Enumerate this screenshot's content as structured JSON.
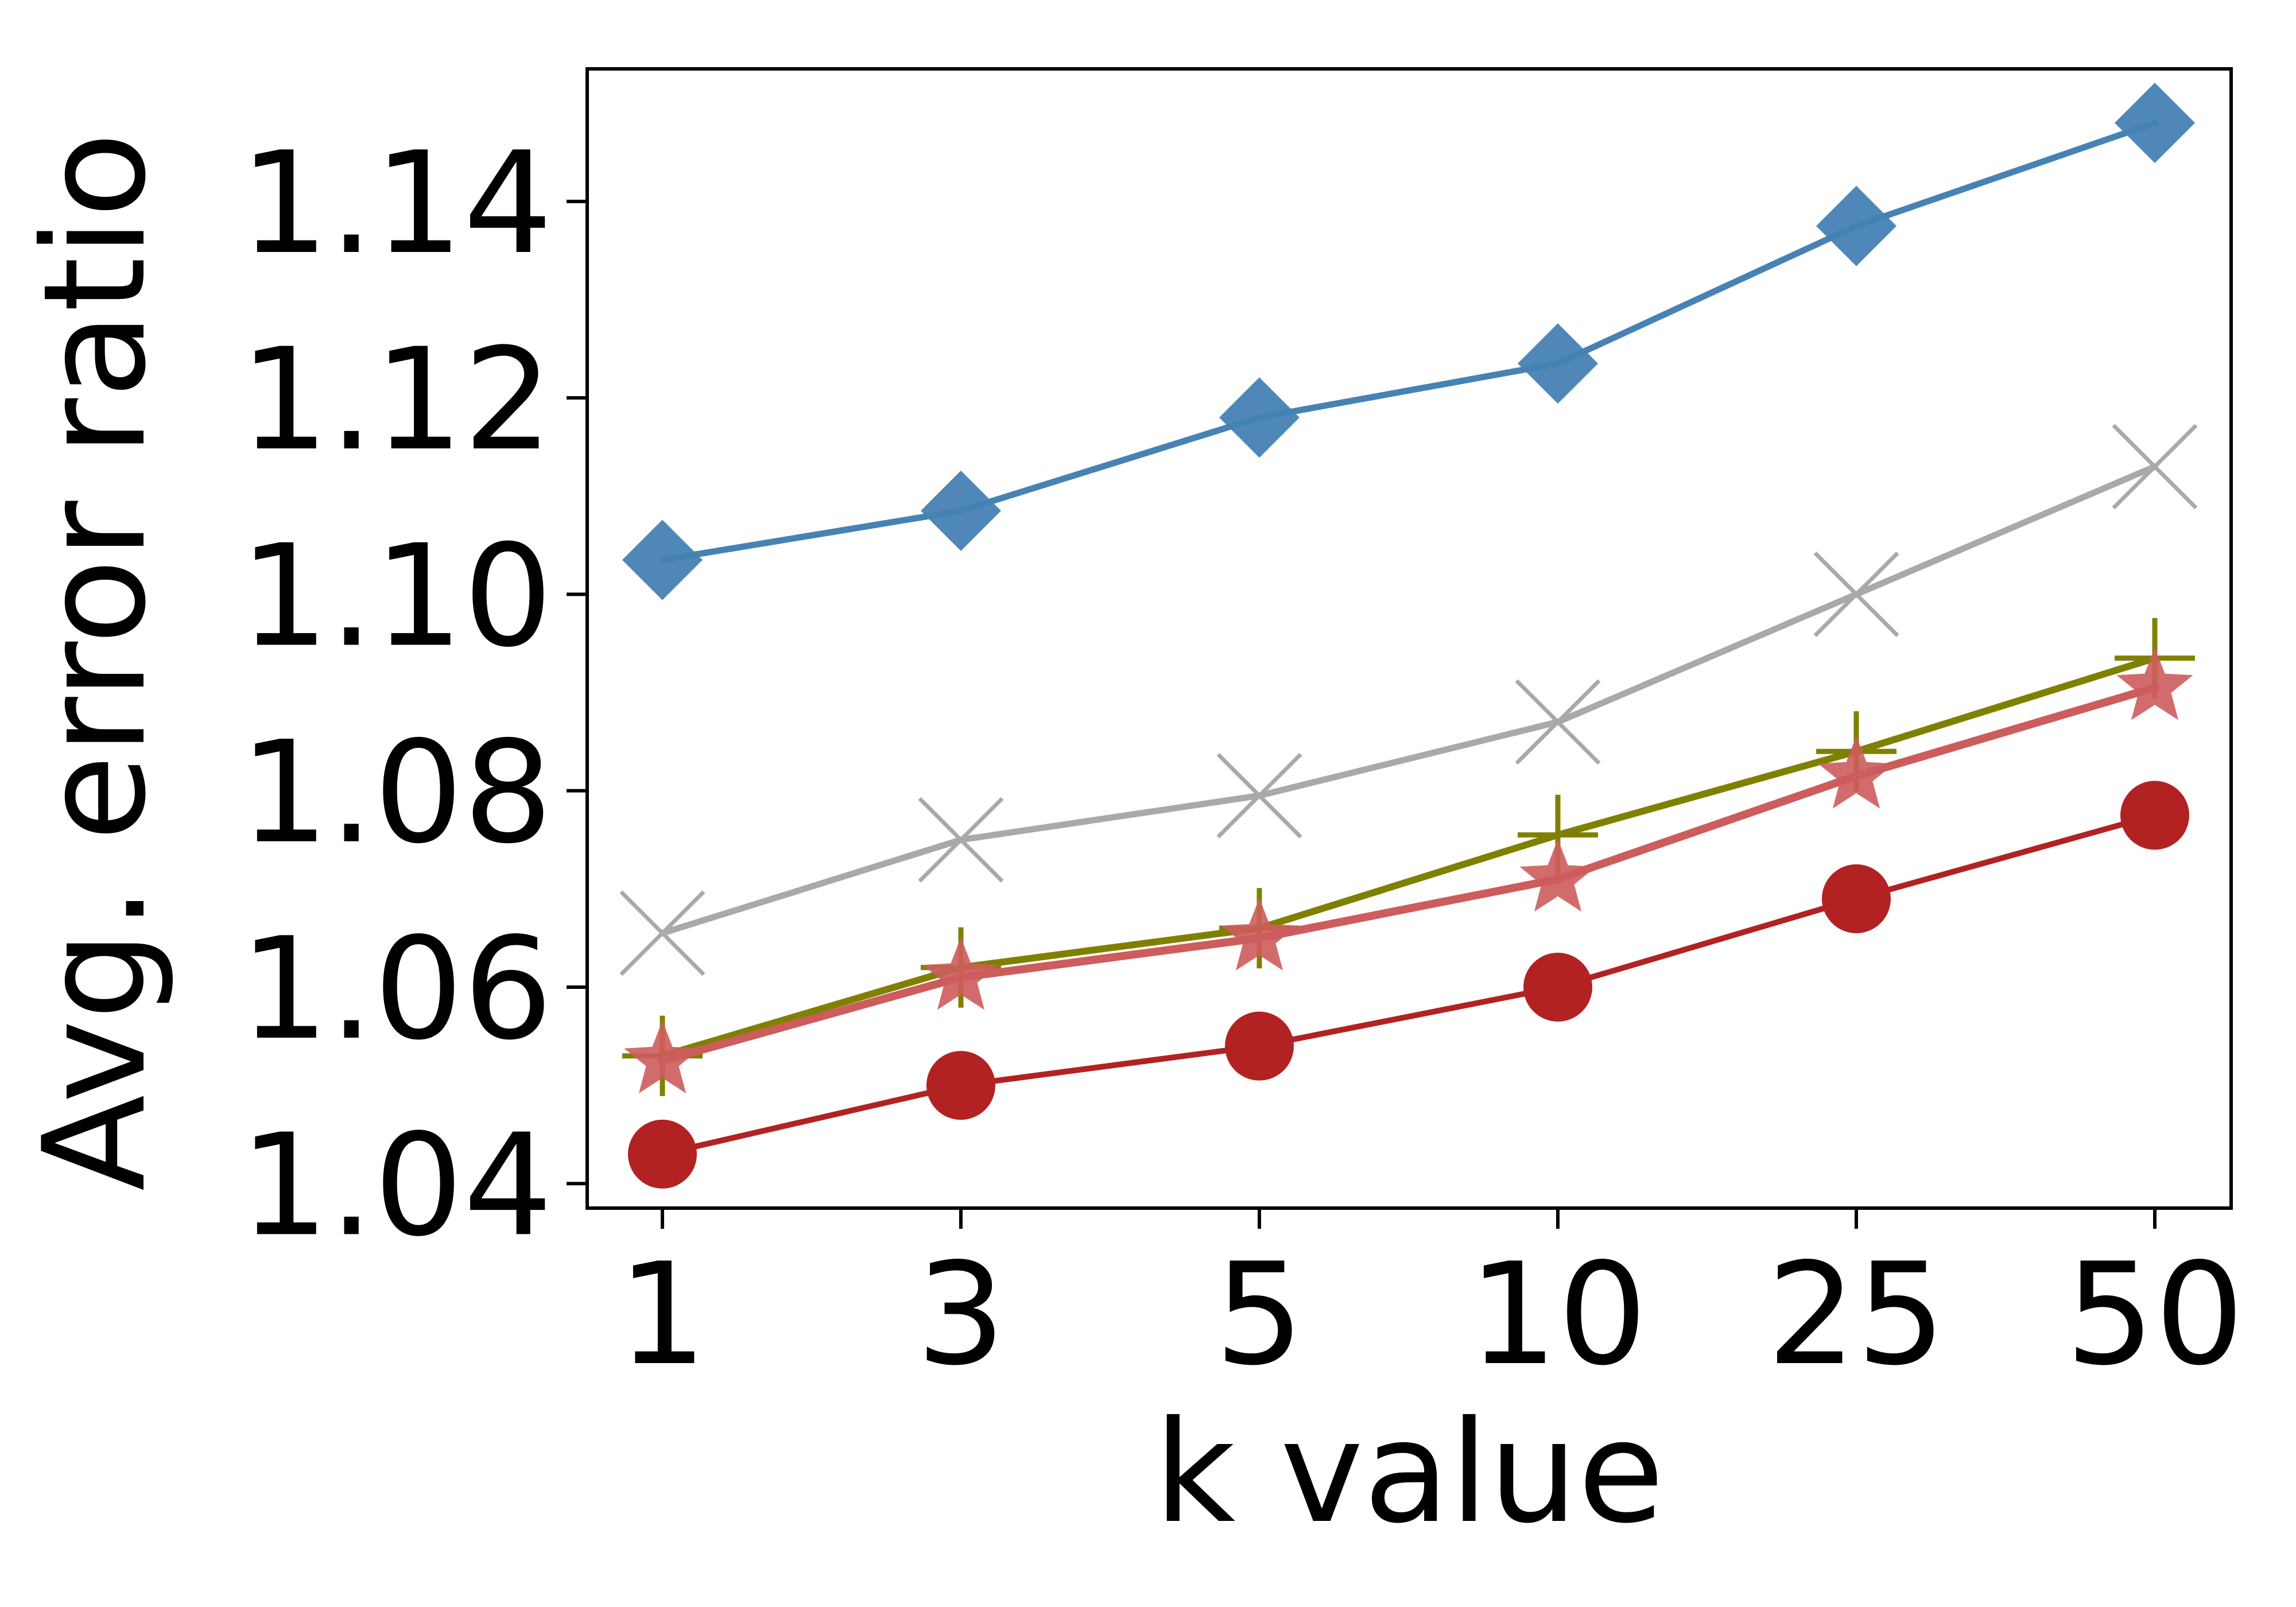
{
  "chart_data": {
    "type": "line",
    "title": "",
    "xlabel": "k value",
    "ylabel": "Avg. error ratio",
    "x_scale": "categorical",
    "categories": [
      "1",
      "3",
      "5",
      "10",
      "25",
      "50"
    ],
    "yticks": [
      "1.04",
      "1.06",
      "1.08",
      "1.10",
      "1.12",
      "1.14"
    ],
    "ylim": [
      1.0375,
      1.1535
    ],
    "grid": false,
    "legend": "none",
    "series": [
      {
        "marker": "diamond",
        "color": "#4682b4",
        "values": [
          1.1035,
          1.1085,
          1.118,
          1.1235,
          1.1375,
          1.148
        ]
      },
      {
        "marker": "x",
        "color": "#a9a9a9",
        "values": [
          1.0655,
          1.075,
          1.0795,
          1.087,
          1.1,
          1.113
        ]
      },
      {
        "marker": "plus",
        "color": "#808000",
        "values": [
          1.053,
          1.062,
          1.066,
          1.0755,
          1.084,
          1.0935
        ]
      },
      {
        "marker": "star",
        "color": "#cd5c5c",
        "values": [
          1.0525,
          1.061,
          1.065,
          1.071,
          1.0815,
          1.0905
        ]
      },
      {
        "marker": "circle",
        "color": "#b22222",
        "values": [
          1.043,
          1.05,
          1.054,
          1.06,
          1.069,
          1.0775
        ]
      }
    ]
  }
}
